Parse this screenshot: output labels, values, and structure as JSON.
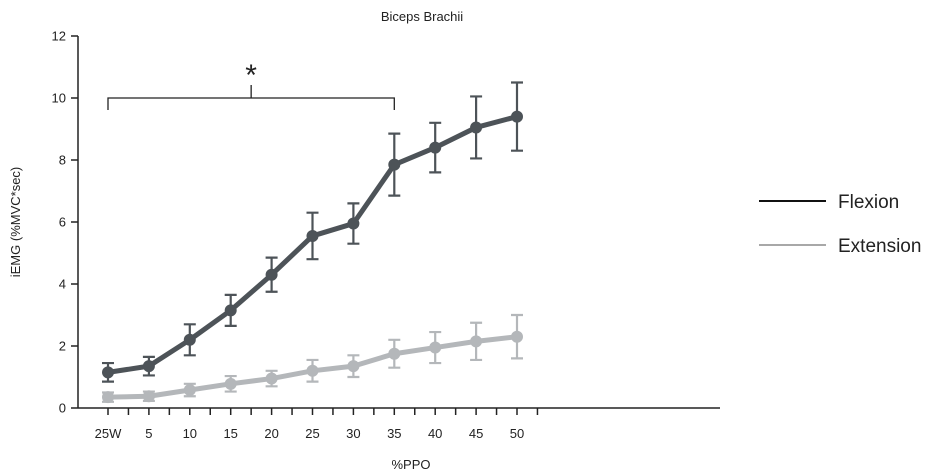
{
  "chart_data": {
    "type": "line",
    "title": "Biceps Brachii",
    "xlabel": "%PPO",
    "ylabel": "iEMG (%MVC*sec)",
    "categories": [
      "25W",
      "5",
      "10",
      "15",
      "20",
      "25",
      "30",
      "35",
      "40",
      "45",
      "50"
    ],
    "ylim": [
      0,
      12
    ],
    "yticks": [
      0,
      2,
      4,
      6,
      8,
      10,
      12
    ],
    "grid": false,
    "legend_position": "right",
    "series": [
      {
        "name": "Flexion",
        "color": "#4d5358",
        "legend_color": "#111111",
        "values": [
          1.15,
          1.35,
          2.2,
          3.15,
          4.3,
          5.55,
          5.95,
          7.85,
          8.4,
          9.05,
          9.4
        ],
        "errors": [
          0.3,
          0.3,
          0.5,
          0.5,
          0.55,
          0.75,
          0.65,
          1.0,
          0.8,
          1.0,
          1.1
        ]
      },
      {
        "name": "Extension",
        "color": "#b4b7ba",
        "legend_color": "#a8a8a8",
        "values": [
          0.35,
          0.38,
          0.58,
          0.78,
          0.95,
          1.2,
          1.35,
          1.75,
          1.95,
          2.15,
          2.3
        ],
        "errors": [
          0.15,
          0.15,
          0.2,
          0.25,
          0.25,
          0.35,
          0.35,
          0.45,
          0.5,
          0.6,
          0.7
        ]
      }
    ],
    "annotations": [
      {
        "text": "*",
        "type": "significance-bracket",
        "from_category": "25W",
        "to_category": "35",
        "y": 10.0
      }
    ]
  }
}
